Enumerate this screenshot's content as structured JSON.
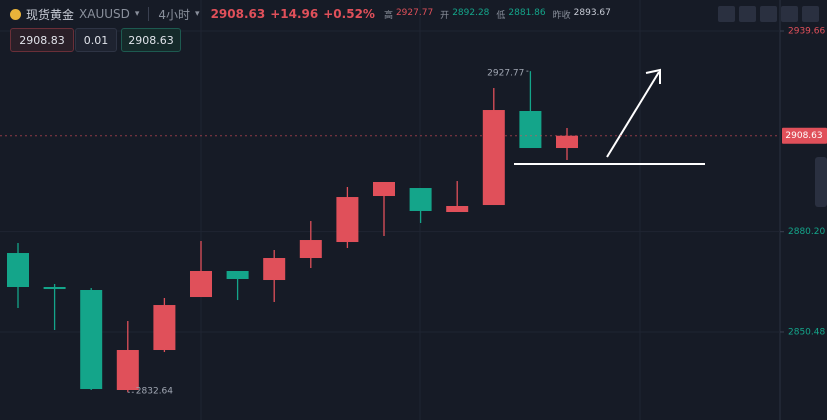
{
  "header": {
    "name": "现货黄金",
    "symbol": "XAUUSD",
    "interval": "4小时",
    "price": "2908.63",
    "change": "+14.96",
    "change_pct": "+0.52%",
    "stats": [
      {
        "label": "高",
        "value": "2927.77"
      },
      {
        "label": "开",
        "value": "2892.28"
      },
      {
        "label": "低",
        "value": "2881.86"
      },
      {
        "label": "昨收",
        "value": "2893.67"
      }
    ]
  },
  "order": {
    "sell": "2908.83",
    "lot": "0.01",
    "buy": "2908.63"
  },
  "chart_data": {
    "type": "candlestick",
    "up_color": "#e0505a",
    "down_color": "#14a58a",
    "open": [
      2873.88,
      2863.81,
      2862.92,
      2833.29,
      2845.14,
      2860.84,
      2868.55,
      2865.88,
      2872.4,
      2877.14,
      2890.77,
      2893.14,
      2886.03,
      2888.1,
      2915.96,
      2904.99
    ],
    "high": [
      2876.84,
      2864.7,
      2863.51,
      2853.73,
      2860.55,
      2877.44,
      2868.55,
      2874.77,
      2883.36,
      2893.44,
      2894.92,
      2893.14,
      2895.21,
      2922.77,
      2927.77,
      2910.92
    ],
    "low": [
      2857.59,
      2851.07,
      2833.29,
      2832.64,
      2844.54,
      2860.84,
      2859.95,
      2859.36,
      2869.44,
      2875.36,
      2878.92,
      2882.77,
      2886.03,
      2888.1,
      2904.99,
      2901.44
    ],
    "close": [
      2863.81,
      2863.21,
      2833.58,
      2845.14,
      2858.47,
      2868.55,
      2866.18,
      2872.4,
      2877.73,
      2890.47,
      2894.92,
      2886.33,
      2887.81,
      2916.25,
      2904.99,
      2908.63
    ],
    "last_price": 2908.63,
    "ylim": [
      2824.4,
      2948.85
    ],
    "yticks": [
      2939.66,
      {
        "value": 2880.2,
        "label": "2880.20"
      },
      2850.48
    ],
    "ytick_colors": [
      "#e0505a",
      "#14a58a",
      "#14a58a"
    ],
    "grid": true
  }
}
